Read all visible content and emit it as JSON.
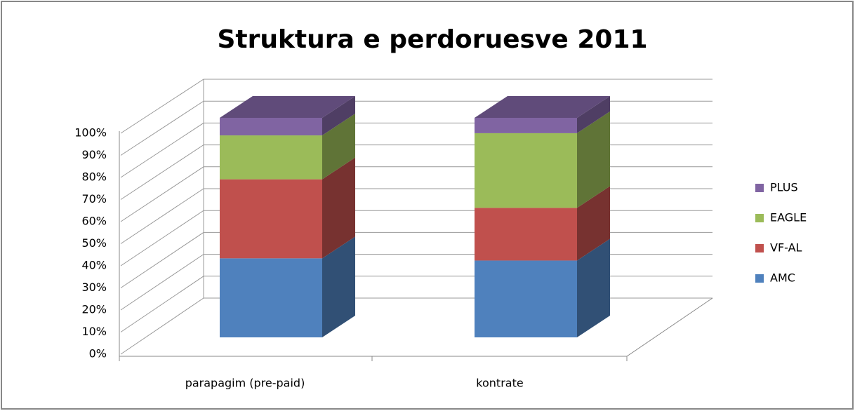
{
  "chart_data": {
    "type": "bar3d_stacked_percent",
    "title": "Struktura e perdoruesve 2011",
    "categories": [
      "parapagim (pre-paid)",
      "kontrate"
    ],
    "series": [
      {
        "name": "AMC",
        "color": "#4f81bd",
        "values": [
          36,
          35
        ]
      },
      {
        "name": "VF-AL",
        "color": "#c0504d",
        "values": [
          36,
          24
        ]
      },
      {
        "name": "EAGLE",
        "color": "#9bbb59",
        "values": [
          20,
          34
        ]
      },
      {
        "name": "PLUS",
        "color": "#8064a2",
        "values": [
          8,
          7
        ]
      }
    ],
    "ylim": [
      0,
      100
    ],
    "yticks": [
      {
        "value": 0,
        "label": "0%"
      },
      {
        "value": 10,
        "label": "10%"
      },
      {
        "value": 20,
        "label": "20%"
      },
      {
        "value": 30,
        "label": "30%"
      },
      {
        "value": 40,
        "label": "40%"
      },
      {
        "value": 50,
        "label": "50%"
      },
      {
        "value": 60,
        "label": "60%"
      },
      {
        "value": 70,
        "label": "70%"
      },
      {
        "value": 80,
        "label": "80%"
      },
      {
        "value": 90,
        "label": "90%"
      },
      {
        "value": 100,
        "label": "100%"
      }
    ],
    "grid": true,
    "legend": "right"
  }
}
